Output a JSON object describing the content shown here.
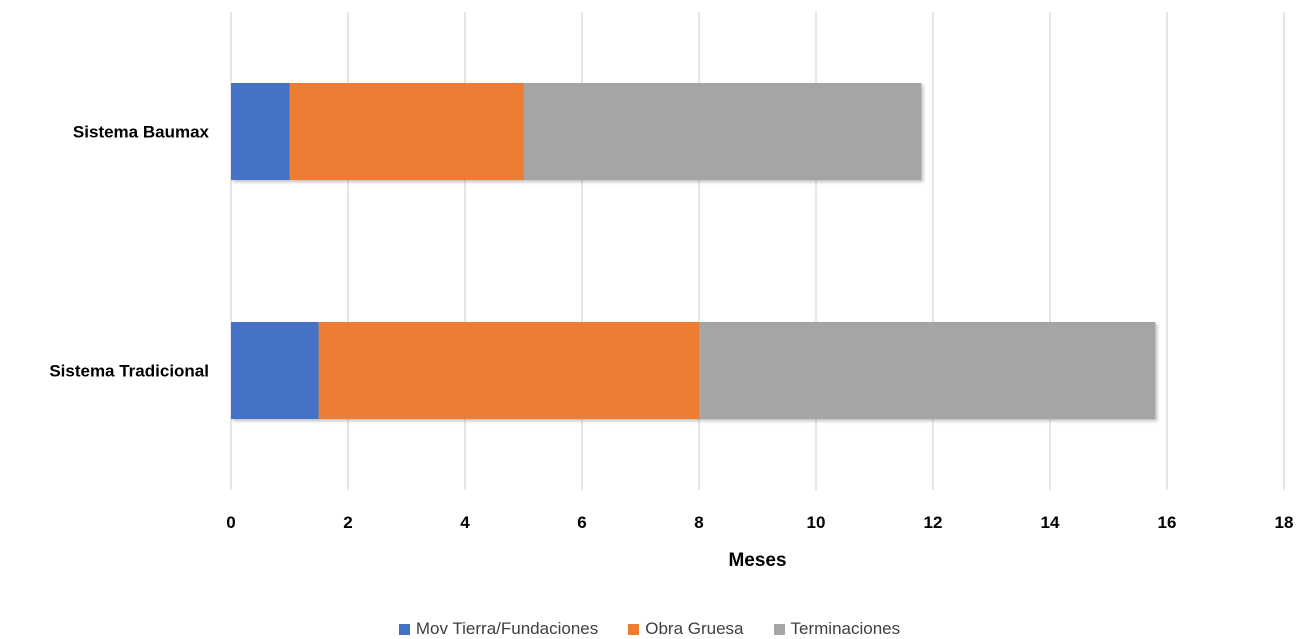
{
  "chart_data": {
    "type": "bar",
    "orientation": "horizontal",
    "stacked": true,
    "categories": [
      "Sistema Tradicional",
      "Sistema Baumax"
    ],
    "series": [
      {
        "name": "Mov Tierra/Fundaciones",
        "values": [
          1.5,
          1.0
        ],
        "color": "#4472C4"
      },
      {
        "name": "Obra Gruesa",
        "values": [
          6.5,
          4.0
        ],
        "color": "#ED7D31"
      },
      {
        "name": "Terminaciones",
        "values": [
          7.8,
          6.8
        ],
        "color": "#A5A5A5"
      }
    ],
    "xlabel": "Meses",
    "xlim": [
      0,
      18
    ],
    "xticks": [
      0,
      2,
      4,
      6,
      8,
      10,
      12,
      14,
      16,
      18
    ],
    "grid": true,
    "legend_position": "bottom"
  }
}
